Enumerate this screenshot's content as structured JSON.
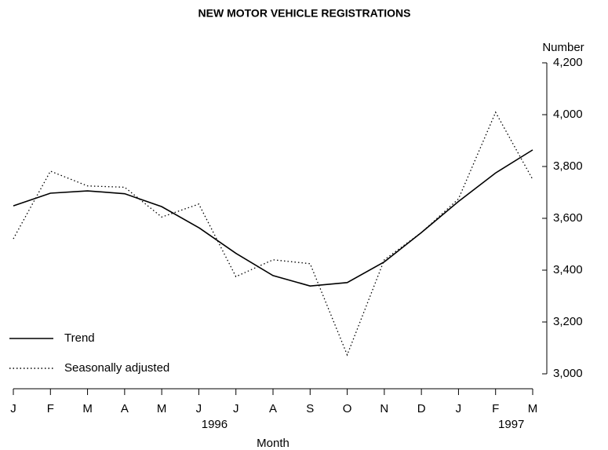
{
  "chart_data": {
    "type": "line",
    "title": "NEW MOTOR VEHICLE REGISTRATIONS",
    "ylabel": "Number",
    "xlabel": "Month",
    "categories": [
      "J",
      "F",
      "M",
      "A",
      "M",
      "J",
      "J",
      "A",
      "S",
      "O",
      "N",
      "D",
      "J",
      "F",
      "M"
    ],
    "year_labels": [
      null,
      null,
      null,
      null,
      null,
      "1996",
      null,
      null,
      null,
      null,
      null,
      null,
      null,
      "1997",
      null
    ],
    "series": [
      {
        "name": "Trend",
        "color": "#000000",
        "dash": "solid",
        "values": [
          3648,
          3697,
          3706,
          3695,
          3645,
          3564,
          3465,
          3379,
          3339,
          3352,
          3432,
          3545,
          3665,
          3775,
          3864
        ]
      },
      {
        "name": "Seasonally adjusted",
        "color": "#000000",
        "dash": "dotted",
        "values": [
          3521,
          3782,
          3725,
          3720,
          3605,
          3655,
          3375,
          3440,
          3425,
          3073,
          3440,
          3545,
          3675,
          4009,
          3750
        ]
      }
    ],
    "ylim": [
      3000,
      4200
    ],
    "yticks": [
      {
        "value": 3000,
        "label": "3,000"
      },
      {
        "value": 3200,
        "label": "3,200"
      },
      {
        "value": 3400,
        "label": "3,400"
      },
      {
        "value": 3600,
        "label": "3,600"
      },
      {
        "value": 3800,
        "label": "3,800"
      },
      {
        "value": 4000,
        "label": "4,000"
      },
      {
        "value": 4200,
        "label": "4,200"
      }
    ],
    "y_axis_side": "right",
    "grid": false,
    "legend": "lower left"
  }
}
